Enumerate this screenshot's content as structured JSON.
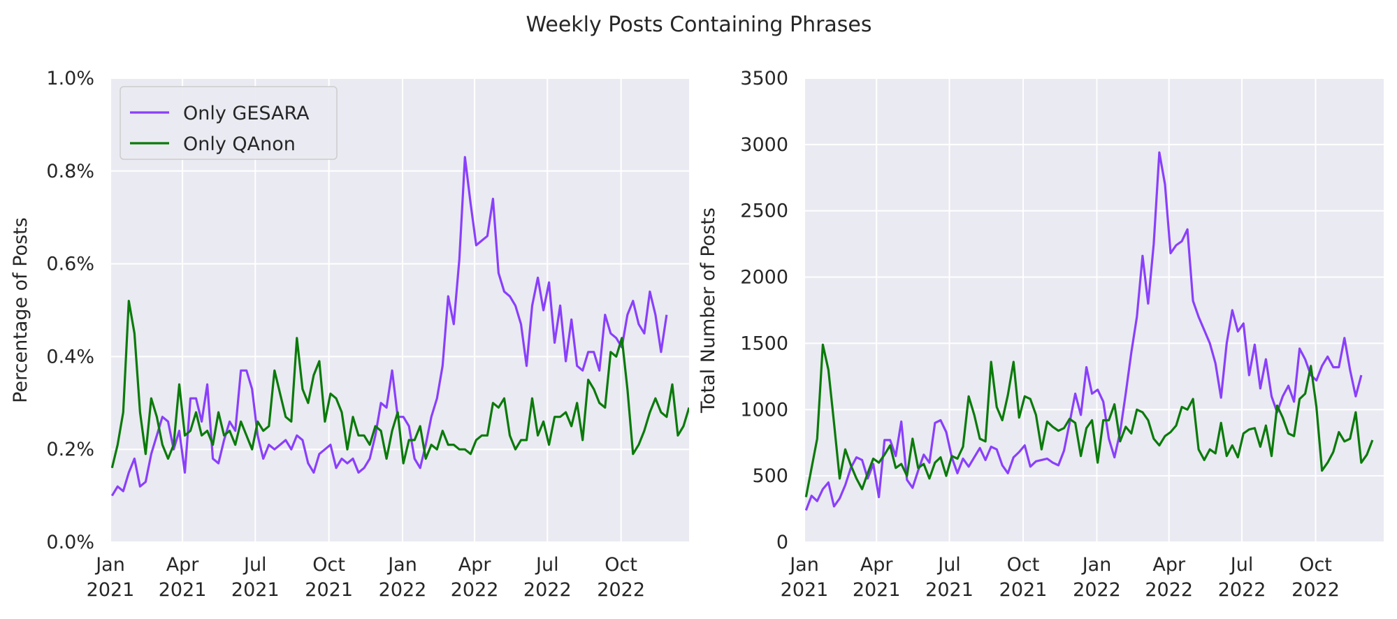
{
  "figure": {
    "title": "Weekly Posts Containing Phrases"
  },
  "colors": {
    "gesara": "#8a3ffc",
    "qanon": "#0a7a0a",
    "panel_bg": "#eaeaf2",
    "grid": "#ffffff"
  },
  "x_ticks": [
    {
      "month": "Jan",
      "year": "2021",
      "date": "2021-01-01"
    },
    {
      "month": "Apr",
      "year": "2021",
      "date": "2021-04-01"
    },
    {
      "month": "Jul",
      "year": "2021",
      "date": "2021-07-01"
    },
    {
      "month": "Oct",
      "year": "2021",
      "date": "2021-10-01"
    },
    {
      "month": "Jan",
      "year": "2022",
      "date": "2022-01-01"
    },
    {
      "month": "Apr",
      "year": "2022",
      "date": "2022-04-01"
    },
    {
      "month": "Jul",
      "year": "2022",
      "date": "2022-07-01"
    },
    {
      "month": "Oct",
      "year": "2022",
      "date": "2022-10-01"
    }
  ],
  "chart_data": [
    {
      "type": "line",
      "ylabel": "Percentage of Posts",
      "xlim": [
        "2021-01-01",
        "2022-12-25"
      ],
      "ylim": [
        0,
        1.0
      ],
      "y_ticks": [
        "0.0%",
        "0.2%",
        "0.4%",
        "0.6%",
        "0.8%",
        "1.0%"
      ],
      "y_tick_values": [
        0,
        0.2,
        0.4,
        0.6,
        0.8,
        1.0
      ],
      "grid": true,
      "legend": {
        "position": "top-left",
        "entries": [
          "Only GESARA",
          "Only QAnon"
        ]
      },
      "x_start": "2021-01-03",
      "x_step_days": 7,
      "series": [
        {
          "name": "Only GESARA",
          "color_key": "gesara",
          "values": [
            0.1,
            0.12,
            0.11,
            0.15,
            0.18,
            0.12,
            0.13,
            0.19,
            0.23,
            0.27,
            0.26,
            0.2,
            0.24,
            0.15,
            0.31,
            0.31,
            0.26,
            0.34,
            0.18,
            0.17,
            0.22,
            0.26,
            0.24,
            0.37,
            0.37,
            0.33,
            0.23,
            0.18,
            0.21,
            0.2,
            0.21,
            0.22,
            0.2,
            0.23,
            0.22,
            0.17,
            0.15,
            0.19,
            0.2,
            0.21,
            0.16,
            0.18,
            0.17,
            0.18,
            0.15,
            0.16,
            0.18,
            0.23,
            0.3,
            0.29,
            0.37,
            0.27,
            0.27,
            0.25,
            0.18,
            0.16,
            0.21,
            0.27,
            0.31,
            0.38,
            0.53,
            0.47,
            0.61,
            0.83,
            0.73,
            0.64,
            0.65,
            0.66,
            0.74,
            0.58,
            0.54,
            0.53,
            0.51,
            0.47,
            0.38,
            0.51,
            0.57,
            0.5,
            0.56,
            0.43,
            0.51,
            0.39,
            0.48,
            0.38,
            0.37,
            0.41,
            0.41,
            0.37,
            0.49,
            0.45,
            0.44,
            0.42,
            0.49,
            0.52,
            0.47,
            0.45,
            0.54,
            0.49,
            0.41,
            0.49
          ]
        },
        {
          "name": "Only QAnon",
          "color_key": "qanon",
          "values": [
            0.16,
            0.21,
            0.28,
            0.52,
            0.45,
            0.28,
            0.19,
            0.31,
            0.27,
            0.21,
            0.18,
            0.21,
            0.34,
            0.23,
            0.24,
            0.28,
            0.23,
            0.24,
            0.21,
            0.28,
            0.23,
            0.24,
            0.21,
            0.26,
            0.23,
            0.2,
            0.26,
            0.24,
            0.25,
            0.37,
            0.32,
            0.27,
            0.26,
            0.44,
            0.33,
            0.3,
            0.36,
            0.39,
            0.26,
            0.32,
            0.31,
            0.28,
            0.2,
            0.27,
            0.23,
            0.23,
            0.21,
            0.25,
            0.24,
            0.18,
            0.24,
            0.28,
            0.17,
            0.22,
            0.22,
            0.25,
            0.18,
            0.21,
            0.2,
            0.24,
            0.21,
            0.21,
            0.2,
            0.2,
            0.19,
            0.22,
            0.23,
            0.23,
            0.3,
            0.29,
            0.31,
            0.23,
            0.2,
            0.22,
            0.22,
            0.31,
            0.23,
            0.26,
            0.21,
            0.27,
            0.27,
            0.28,
            0.25,
            0.3,
            0.22,
            0.35,
            0.33,
            0.3,
            0.29,
            0.41,
            0.4,
            0.44,
            0.33,
            0.19,
            0.21,
            0.24,
            0.28,
            0.31,
            0.28,
            0.27,
            0.34,
            0.23,
            0.25,
            0.29
          ]
        }
      ]
    },
    {
      "type": "line",
      "ylabel": "Total Number of Posts",
      "xlim": [
        "2021-01-01",
        "2022-12-25"
      ],
      "ylim": [
        0,
        3500
      ],
      "y_ticks": [
        "0",
        "500",
        "1000",
        "1500",
        "2000",
        "2500",
        "3000",
        "3500"
      ],
      "y_tick_values": [
        0,
        500,
        1000,
        1500,
        2000,
        2500,
        3000,
        3500
      ],
      "grid": true,
      "x_start": "2021-01-03",
      "x_step_days": 7,
      "series": [
        {
          "name": "Only GESARA",
          "color_key": "gesara",
          "values": [
            240,
            350,
            310,
            400,
            450,
            270,
            330,
            430,
            560,
            640,
            620,
            480,
            590,
            340,
            770,
            770,
            650,
            910,
            470,
            410,
            540,
            660,
            600,
            900,
            920,
            830,
            640,
            520,
            630,
            570,
            640,
            710,
            620,
            720,
            700,
            580,
            520,
            640,
            680,
            730,
            570,
            610,
            620,
            630,
            600,
            580,
            690,
            900,
            1120,
            960,
            1320,
            1120,
            1150,
            1060,
            780,
            640,
            830,
            1120,
            1430,
            1700,
            2160,
            1800,
            2250,
            2940,
            2700,
            2180,
            2240,
            2270,
            2360,
            1820,
            1700,
            1600,
            1500,
            1350,
            1090,
            1500,
            1750,
            1590,
            1650,
            1260,
            1490,
            1160,
            1380,
            1100,
            980,
            1100,
            1180,
            1060,
            1460,
            1380,
            1260,
            1220,
            1330,
            1400,
            1320,
            1320,
            1540,
            1300,
            1100,
            1260
          ]
        },
        {
          "name": "Only QAnon",
          "color_key": "qanon",
          "values": [
            340,
            560,
            780,
            1490,
            1300,
            900,
            480,
            700,
            580,
            480,
            400,
            520,
            630,
            600,
            660,
            730,
            560,
            590,
            500,
            780,
            560,
            590,
            480,
            600,
            640,
            500,
            650,
            630,
            720,
            1100,
            960,
            780,
            760,
            1360,
            1020,
            920,
            1110,
            1360,
            940,
            1100,
            1080,
            960,
            700,
            910,
            870,
            840,
            860,
            930,
            900,
            650,
            860,
            920,
            600,
            920,
            920,
            1040,
            760,
            870,
            820,
            1000,
            980,
            920,
            780,
            730,
            800,
            830,
            880,
            1020,
            1000,
            1080,
            700,
            620,
            700,
            670,
            900,
            650,
            730,
            640,
            820,
            850,
            860,
            720,
            880,
            650,
            1030,
            940,
            820,
            800,
            1080,
            1120,
            1330,
            1020,
            540,
            600,
            680,
            830,
            760,
            780,
            980,
            600,
            660,
            770
          ]
        }
      ]
    }
  ]
}
